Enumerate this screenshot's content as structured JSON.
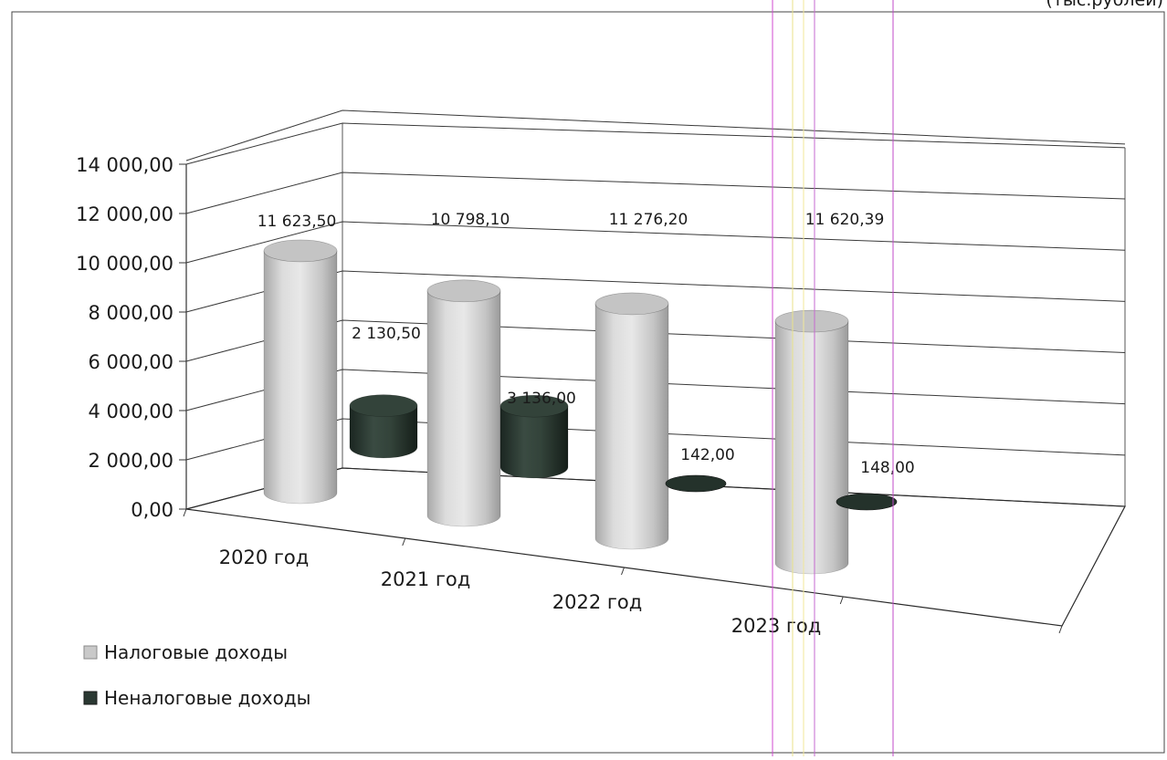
{
  "header_fragment": "(тыс.рублей)",
  "chart_data": {
    "type": "bar",
    "style": "3d-cylinder",
    "categories": [
      "2020 год",
      "2021 год",
      "2022 год",
      "2023 год"
    ],
    "series": [
      {
        "name": "Налоговые доходы",
        "values": [
          11623.5,
          10798.1,
          11276.2,
          11620.39
        ],
        "labels": [
          "11 623,50",
          "10 798,10",
          "11 276,20",
          "11 620,39"
        ],
        "color": "#cfcfcf"
      },
      {
        "name": "Неналоговые доходы",
        "values": [
          2130.5,
          3136.0,
          142.0,
          148.0
        ],
        "labels": [
          "2 130,50",
          "3 136,00",
          "142,00",
          "148,00"
        ],
        "color": "#2e3e36"
      }
    ],
    "y_ticks": [
      "0,00",
      "2 000,00",
      "4 000,00",
      "6 000,00",
      "8 000,00",
      "10 000,00",
      "12 000,00",
      "14 000,00"
    ],
    "ylim": [
      0,
      14000
    ],
    "grid": true,
    "legend": "bottom-left"
  }
}
